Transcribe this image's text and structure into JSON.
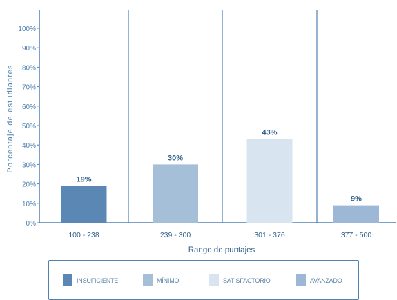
{
  "chart_data": {
    "type": "bar",
    "xlabel": "Rango de puntajes",
    "ylabel": "Porcentaje de estudiantes",
    "ylim": [
      0,
      100
    ],
    "yticks": [
      "0%",
      "10%",
      "20%",
      "30%",
      "40%",
      "50%",
      "60%",
      "70%",
      "80%",
      "90%",
      "100%"
    ],
    "categories": [
      "100 - 238",
      "239 - 300",
      "301 - 376",
      "377 - 500"
    ],
    "values": [
      19,
      30,
      43,
      9
    ],
    "value_labels": [
      "19%",
      "30%",
      "43%",
      "9%"
    ],
    "colors": [
      "#5b87b5",
      "#a5bfd8",
      "#d8e5f1",
      "#9cb8d6"
    ],
    "legend": [
      "INSUFICIENTE",
      "MÍNIMO",
      "SATISFACTORIO",
      "AVANZADO"
    ],
    "legend_placement": "bottom",
    "grid": false
  }
}
